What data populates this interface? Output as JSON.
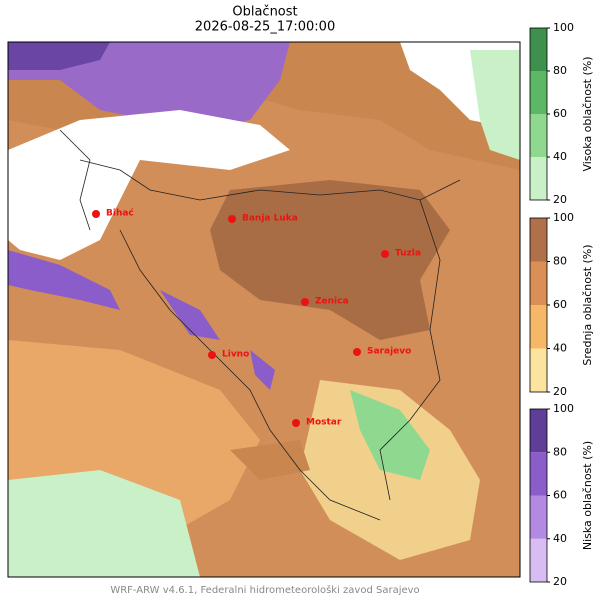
{
  "header": {
    "title": "Oblačnost",
    "subtitle": "2026-08-25_17:00:00"
  },
  "cities": [
    "Bihać",
    "Banja Luka",
    "Tuzla",
    "Zenica",
    "Sarajevo",
    "Livno",
    "Mostar"
  ],
  "colorbars": [
    {
      "label": "Visoka oblačnost (%)",
      "lim": [
        20,
        100
      ],
      "ticks": [
        20,
        40,
        60,
        80,
        100
      ],
      "colors": [
        "#c9f0c6",
        "#8fd890",
        "#5cb865",
        "#3f8f4e"
      ]
    },
    {
      "label": "Srednja oblačnost (%)",
      "lim": [
        20,
        100
      ],
      "ticks": [
        20,
        40,
        60,
        80,
        100
      ],
      "colors": [
        "#fde3a0",
        "#f5b867",
        "#d98f55",
        "#b0714a"
      ]
    },
    {
      "label": "Niska oblačnost (%)",
      "lim": [
        20,
        100
      ],
      "ticks": [
        20,
        40,
        60,
        80,
        100
      ],
      "colors": [
        "#d8bdf3",
        "#b28ae2",
        "#8b5dcb",
        "#5e3e98"
      ]
    }
  ],
  "footer": "WRF-ARW v4.6.1, Federalni hidrometeorološki zavod Sarajevo"
}
